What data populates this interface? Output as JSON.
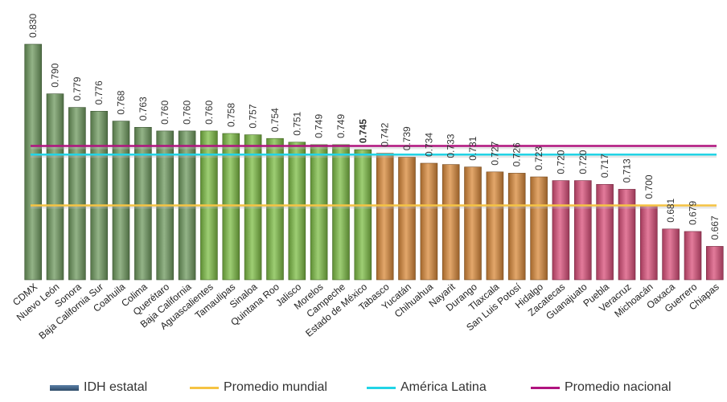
{
  "chart_data": {
    "type": "bar",
    "title": "",
    "xlabel": "",
    "ylabel": "",
    "ylim": [
      0.64,
      0.835
    ],
    "categories": [
      "CDMX",
      "Nuevo León",
      "Sonora",
      "Baja California Sur",
      "Coahuila",
      "Colima",
      "Querétaro",
      "Baja California",
      "Aguascalientes",
      "Tamaulipas",
      "Sinaloa",
      "Quintana Roo",
      "Jalisco",
      "Morelos",
      "Campeche",
      "Estado de México",
      "Tabasco",
      "Yucatán",
      "Chihuahua",
      "Nayarit",
      "Durango",
      "Tlaxcala",
      "San Luis Potosí",
      "Hidalgo",
      "Zacatecas",
      "Guanajuato",
      "Puebla",
      "Veracruz",
      "Michoacán",
      "Oaxaca",
      "Guerrero",
      "Chiapas"
    ],
    "values": [
      0.83,
      0.79,
      0.779,
      0.776,
      0.768,
      0.763,
      0.76,
      0.76,
      0.76,
      0.758,
      0.757,
      0.754,
      0.751,
      0.749,
      0.749,
      0.745,
      0.742,
      0.739,
      0.734,
      0.733,
      0.731,
      0.727,
      0.726,
      0.723,
      0.72,
      0.72,
      0.717,
      0.713,
      0.7,
      0.681,
      0.679,
      0.667
    ],
    "value_labels": [
      "0.830",
      "0.790",
      "0.779",
      "0.776",
      "0.768",
      "0.763",
      "0.760",
      "0.760",
      "0.760",
      "0.758",
      "0.757",
      "0.754",
      "0.751",
      "0.749",
      "0.749",
      "0.745",
      "0.742",
      "0.739",
      "0.734",
      "0.733",
      "0.731",
      "0.727",
      "0.726",
      "0.723",
      "0.720",
      "0.720",
      "0.717",
      "0.713",
      "0.700",
      "0.681",
      "0.679",
      "0.667"
    ],
    "bar_groups": [
      0,
      0,
      0,
      0,
      0,
      0,
      0,
      0,
      1,
      1,
      1,
      1,
      1,
      1,
      1,
      1,
      2,
      2,
      2,
      2,
      2,
      2,
      2,
      2,
      3,
      3,
      3,
      3,
      3,
      3,
      3,
      3
    ],
    "group_colors": [
      "#6f9a5f",
      "#7dbd45",
      "#d9893a",
      "#d94f79"
    ],
    "bold_label_index": 15,
    "series": [
      {
        "name": "IDH estatal",
        "type": "bar"
      },
      {
        "name": "Promedio mundial",
        "type": "line",
        "value": 0.7,
        "color": "#f5c343"
      },
      {
        "name": "América Latina",
        "type": "line",
        "value": 0.741,
        "color": "#22d4e6"
      },
      {
        "name": "Promedio nacional",
        "type": "line",
        "value": 0.748,
        "color": "#b0137f"
      }
    ],
    "legend_position": "bottom",
    "grid": false
  },
  "legend": {
    "items": [
      {
        "label": "IDH estatal",
        "color": "#3e5f82"
      },
      {
        "label": "Promedio mundial",
        "color": "#f5c343"
      },
      {
        "label": "América Latina",
        "color": "#22d4e6"
      },
      {
        "label": "Promedio nacional",
        "color": "#b0137f"
      }
    ]
  }
}
